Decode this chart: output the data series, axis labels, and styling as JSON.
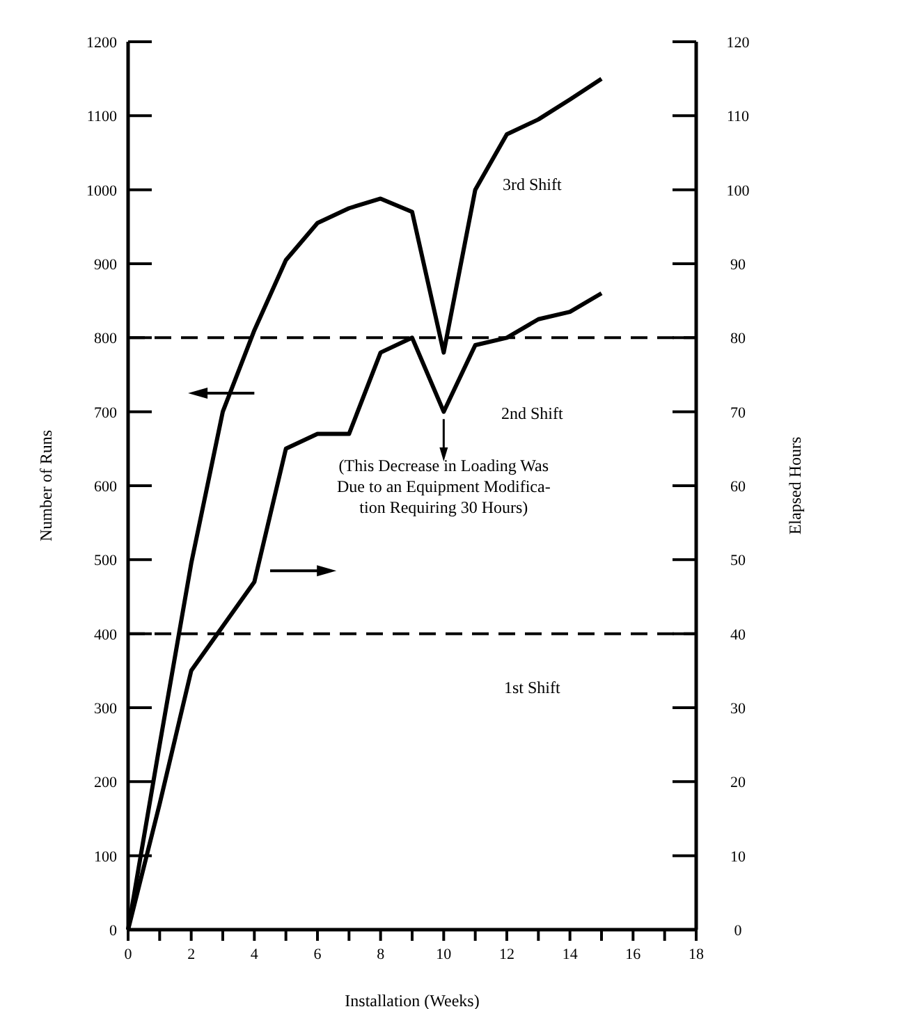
{
  "chart_data": {
    "type": "line",
    "xlabel": "Installation (Weeks)",
    "ylabel": "Number of Runs",
    "y2label": "Elapsed Hours",
    "x": [
      0,
      1,
      2,
      3,
      4,
      5,
      6,
      7,
      8,
      9,
      10,
      11,
      12,
      13,
      14,
      15
    ],
    "series": [
      {
        "color": "#000000",
        "values": [
          0,
          250,
          495,
          700,
          810,
          905,
          955,
          975,
          988,
          970,
          780,
          1000,
          1075,
          1095,
          1122,
          1150
        ]
      },
      {
        "color": "#000000",
        "axis": "y2",
        "values": [
          0,
          17,
          35,
          41,
          47,
          65,
          67,
          67,
          78,
          80,
          70,
          79,
          80,
          82.5,
          83.5,
          86
        ]
      }
    ],
    "xlim": [
      0,
      18
    ],
    "xticks": [
      0,
      {
        "value": 1,
        "label": null
      },
      2,
      {
        "value": 3,
        "label": null
      },
      4,
      {
        "value": 5,
        "label": null
      },
      6,
      {
        "value": 7,
        "label": null
      },
      8,
      {
        "value": 9,
        "label": null
      },
      10,
      {
        "value": 11,
        "label": null
      },
      12,
      {
        "value": 13,
        "label": null
      },
      14,
      {
        "value": 15,
        "label": null
      },
      16,
      {
        "value": 17,
        "label": null
      },
      18
    ],
    "ylim": [
      0,
      1200
    ],
    "yticks": [
      0,
      100,
      200,
      300,
      400,
      500,
      600,
      700,
      800,
      900,
      1000,
      1100,
      1200
    ],
    "y2lim": [
      0,
      120
    ],
    "y2ticks": [
      0,
      10,
      20,
      30,
      40,
      50,
      60,
      70,
      80,
      90,
      100,
      110,
      120
    ],
    "ref_lines": [
      {
        "axis": "y",
        "value": 400,
        "line_style": "dashed"
      },
      {
        "axis": "y",
        "value": 800,
        "line_style": "dashed"
      }
    ],
    "annotations": [
      "3rd Shift",
      "2nd Shift",
      "1st Shift",
      "(This Decrease in Loading Was\nDue to an Equipment Modifica-\ntion Requiring 30 Hours)"
    ],
    "grid": false,
    "marker": "none",
    "line_style": "solid"
  }
}
